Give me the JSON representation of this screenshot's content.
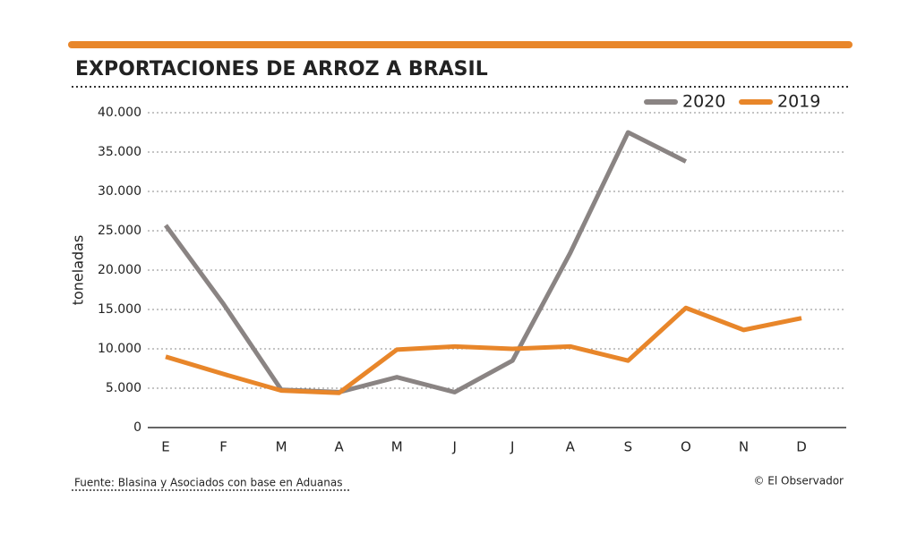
{
  "chart_data": {
    "type": "line",
    "title": "EXPORTACIONES DE ARROZ A BRASIL",
    "y_label": "toneladas",
    "source": "Fuente: Blasina y Asociados con base en Aduanas",
    "credit": "© El Observador",
    "categories": [
      "E",
      "F",
      "M",
      "A",
      "M",
      "J",
      "J",
      "A",
      "S",
      "O",
      "N",
      "D"
    ],
    "series": [
      {
        "name": "2020",
        "color": "#8a8483",
        "values": [
          25700,
          15700,
          4800,
          4500,
          6400,
          4500,
          8500,
          22200,
          37500,
          33800,
          null,
          null
        ]
      },
      {
        "name": "2019",
        "color": "#e8862a",
        "values": [
          9000,
          6800,
          4700,
          4400,
          9900,
          10300,
          10000,
          10300,
          8500,
          15200,
          12400,
          13900
        ]
      }
    ],
    "ylim": [
      0,
      40000
    ],
    "yticks": [
      0,
      {
        "value": 5000,
        "label": "5.000"
      },
      {
        "value": 10000,
        "label": "10.000"
      },
      {
        "value": 15000,
        "label": "15.000"
      },
      {
        "value": 20000,
        "label": "20.000"
      },
      {
        "value": 25000,
        "label": "25.000"
      },
      {
        "value": 30000,
        "label": "30.000"
      },
      {
        "value": 35000,
        "label": "35.000"
      },
      {
        "value": 40000,
        "label": "40.000"
      }
    ],
    "grid": true
  }
}
